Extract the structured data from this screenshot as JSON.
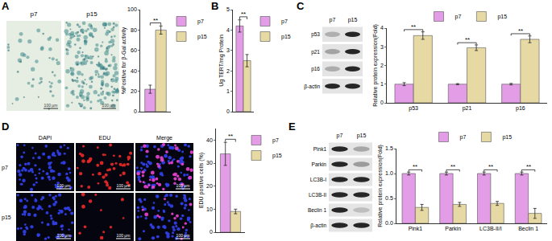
{
  "panels": [
    {
      "label": "A",
      "image_labels": [
        "p7",
        "p15"
      ],
      "scale_bar": "100 μm"
    },
    {
      "label": "B"
    },
    {
      "label": "C",
      "lane_labels": [
        "p7",
        "p15"
      ],
      "blot_rows": [
        "p53",
        "p21",
        "p16",
        "β-actin"
      ]
    },
    {
      "label": "D",
      "column_labels": [
        "DAPI",
        "EDU",
        "Merge"
      ],
      "row_labels": [
        "p7",
        "p15"
      ],
      "scale_bar": "100 μm"
    },
    {
      "label": "E",
      "lane_labels": [
        "p7",
        "p15"
      ],
      "blot_rows": [
        "Pink1",
        "Parkin",
        "LC3B-I",
        "LC3B-II",
        "Beclin 1",
        "β-actin"
      ]
    }
  ],
  "chart_data": [
    {
      "type": "bar",
      "ylabel": "%Positive for β-Gal activity",
      "series": [
        {
          "name": "p7",
          "color": "#e39de6",
          "values": [
            22
          ],
          "error": [
            4
          ]
        },
        {
          "name": "p15",
          "color": "#e6d9a3",
          "values": [
            80
          ],
          "error": [
            4
          ]
        }
      ],
      "ylim": [
        0,
        100
      ],
      "yticks": [
        0,
        20,
        40,
        60,
        80,
        100
      ],
      "annotations": [
        {
          "text": "**"
        }
      ],
      "legend": "right",
      "tick_labels": "y",
      "grid": false
    },
    {
      "type": "bar",
      "ylabel": "Ug TERT/mg Protein",
      "series": [
        {
          "name": "p7",
          "color": "#e39de6",
          "values": [
            4.2
          ],
          "error": [
            0.3
          ]
        },
        {
          "name": "p15",
          "color": "#e6d9a3",
          "values": [
            2.5
          ],
          "error": [
            0.3
          ]
        }
      ],
      "ylim": [
        0,
        5
      ],
      "yticks": [
        0,
        1,
        2,
        3,
        4,
        5
      ],
      "annotations": [
        {
          "text": "**"
        }
      ],
      "legend": "right",
      "tick_labels": "y",
      "grid": false
    },
    {
      "type": "bar",
      "ylabel": "Relative protein expression(Fold)",
      "categories": [
        "p53",
        "p21",
        "p16"
      ],
      "series": [
        {
          "name": "p7",
          "color": "#e39de6",
          "values": [
            1,
            1,
            1
          ],
          "error": [
            0.08,
            0.03,
            0.04
          ]
        },
        {
          "name": "p15",
          "color": "#e6d9a3",
          "values": [
            3.6,
            2.95,
            3.4
          ],
          "error": [
            0.2,
            0.15,
            0.18
          ]
        }
      ],
      "ylim": [
        0,
        4
      ],
      "yticks": [
        0,
        1,
        2,
        3,
        4
      ],
      "annotations": [
        {
          "text": "**",
          "category": "p53"
        },
        {
          "text": "**",
          "category": "p21"
        },
        {
          "text": "**",
          "category": "p16"
        }
      ],
      "legend": "top",
      "grid": false
    },
    {
      "type": "bar",
      "ylabel": "EDU positive cells (%)",
      "series": [
        {
          "name": "p7",
          "color": "#e39de6",
          "values": [
            34
          ],
          "error": [
            5
          ]
        },
        {
          "name": "p15",
          "color": "#e6d9a3",
          "values": [
            9
          ],
          "error": [
            1
          ]
        }
      ],
      "ylim": [
        0,
        45
      ],
      "yticks": [
        0,
        10,
        20,
        30,
        40
      ],
      "annotations": [
        {
          "text": "**"
        }
      ],
      "legend": "right",
      "tick_labels": "y",
      "grid": false
    },
    {
      "type": "bar",
      "ylabel": "Relative protein expression(Fold)",
      "categories": [
        "Pink1",
        "Parkin",
        "LC3B-II/I",
        "Beclin 1"
      ],
      "series": [
        {
          "name": "p7",
          "color": "#e39de6",
          "values": [
            1,
            1,
            1,
            1
          ],
          "error": [
            0.03,
            0.03,
            0.03,
            0.03
          ]
        },
        {
          "name": "p15",
          "color": "#e6d9a3",
          "values": [
            0.32,
            0.38,
            0.4,
            0.2
          ],
          "error": [
            0.06,
            0.04,
            0.04,
            0.1
          ]
        }
      ],
      "ylim": [
        0,
        1.5
      ],
      "yticks": [
        {
          "value": 0,
          "label": "0.0"
        },
        0.5,
        {
          "value": 1,
          "label": "1.0"
        },
        1.5
      ],
      "annotations": [
        {
          "text": "**",
          "category": "Pink1"
        },
        {
          "text": "**",
          "category": "Parkin"
        },
        {
          "text": "**",
          "category": "LC3B-II/I"
        },
        {
          "text": "**",
          "category": "Beclin 1"
        }
      ],
      "legend": "top",
      "grid": false
    }
  ]
}
